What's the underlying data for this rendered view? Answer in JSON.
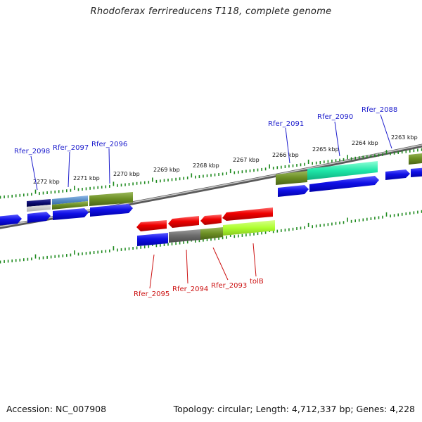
{
  "title": "Rhodoferax ferrireducens T118, complete genome",
  "footer": {
    "accession": "Accession: NC_007908",
    "summary": "Topology: circular; Length: 4,712,337 bp; Genes: 4,228"
  },
  "colors": {
    "forward_label": "#1a1acc",
    "reverse_label": "#cc1111",
    "tick": "#1e8a1e",
    "backbone": "#8a8a8a"
  },
  "kbp_labels": [
    "2272 kbp",
    "2271 kbp",
    "2270 kbp",
    "2269 kbp",
    "2268 kbp",
    "2267 kbp",
    "2266 kbp",
    "2265 kbp",
    "2264 kbp",
    "2263 kbp"
  ],
  "forward_gene_labels": [
    "Rfer_2098",
    "Rfer_2097",
    "Rfer_2096",
    "Rfer_2091",
    "Rfer_2090",
    "Rfer_2088"
  ],
  "reverse_gene_labels": [
    "Rfer_2095",
    "Rfer_2094",
    "Rfer_2093",
    "tolB"
  ]
}
